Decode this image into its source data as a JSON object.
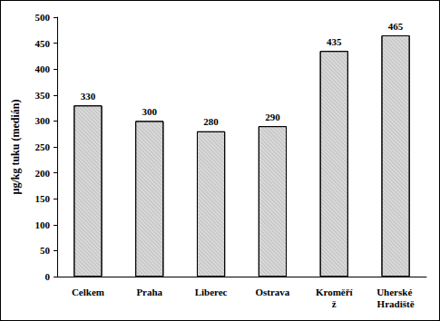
{
  "chart_data": {
    "type": "bar",
    "y_label": "µg/kg tuku (medián)",
    "categories": [
      "Celkem",
      "Praha",
      "Liberec",
      "Ostrava",
      "Kroměříž",
      "Uherské Hradiště"
    ],
    "values": [
      330,
      300,
      280,
      290,
      435,
      465
    ],
    "color": "#d9d9d9",
    "ylim": [
      0,
      500
    ],
    "yticks": [
      0,
      50,
      100,
      150,
      200,
      250,
      300,
      350,
      400,
      450,
      500
    ],
    "grid": false,
    "data_labels": true
  }
}
